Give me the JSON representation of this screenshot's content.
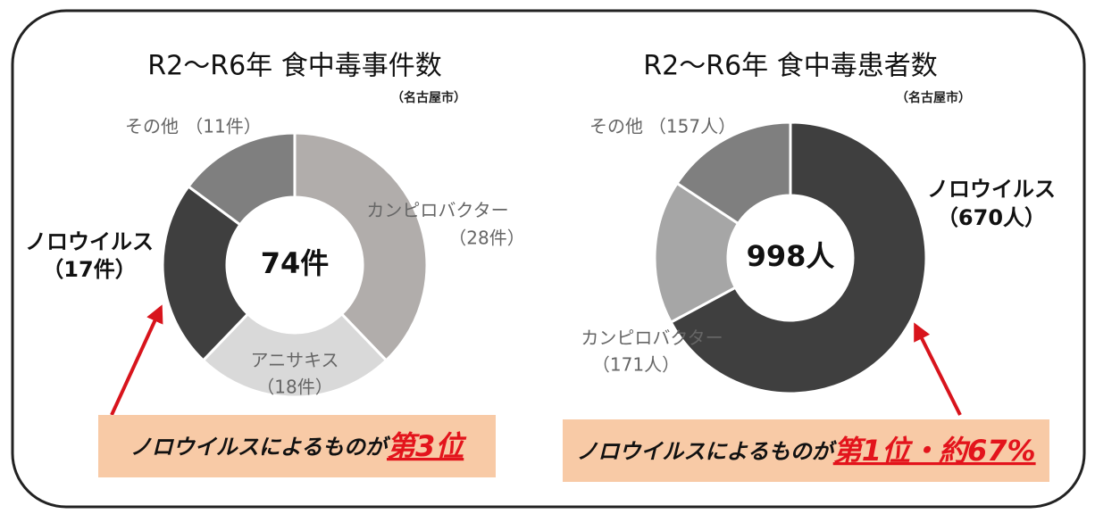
{
  "chart_data": [
    {
      "type": "donut",
      "title": "R2～R6年 食中毒事件数",
      "subtitle": "（名古屋市）",
      "center_label": "74件",
      "categories": [
        "カンピロバクター",
        "アニサキス",
        "ノロウイルス",
        "その他"
      ],
      "values": [
        28,
        18,
        17,
        11
      ],
      "value_labels": [
        "（28件）",
        "（18件）",
        "（17件）",
        "（11件）"
      ],
      "colors": [
        "#b1adab",
        "#d9d9d9",
        "#3f3f3f",
        "#7f7f7f"
      ],
      "annotation": {
        "text": "ノロウイルスによるものが",
        "highlight": "第3位"
      }
    },
    {
      "type": "donut",
      "title": "R2～R6年 食中毒患者数",
      "subtitle": "（名古屋市）",
      "center_label": "998人",
      "categories": [
        "ノロウイルス",
        "カンピロバクター",
        "その他"
      ],
      "values": [
        670,
        171,
        157
      ],
      "value_labels": [
        "（670人）",
        "（171人）",
        "（157人）"
      ],
      "colors": [
        "#3f3f3f",
        "#a6a6a6",
        "#7f7f7f"
      ],
      "annotation": {
        "text": "ノロウイルスによるものが",
        "highlight": "第1位・約67%"
      }
    }
  ]
}
